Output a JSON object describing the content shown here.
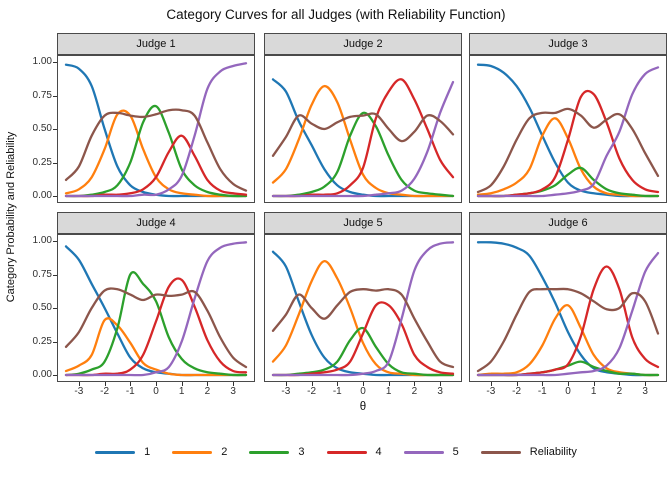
{
  "title": "Category Curves for all Judges (with Reliability Function)",
  "y_axis_label": "Category Probability and Reliability",
  "x_axis_label": "θ",
  "legend": {
    "items": [
      {
        "label": "1",
        "color": "#1f77b4"
      },
      {
        "label": "2",
        "color": "#ff7f0e"
      },
      {
        "label": "3",
        "color": "#2ca02c"
      },
      {
        "label": "4",
        "color": "#d62728"
      },
      {
        "label": "5",
        "color": "#9467bd"
      },
      {
        "label": "Reliability",
        "color": "#8c564b"
      }
    ]
  },
  "chart_data": {
    "type": "line",
    "title": "Category Curves for all Judges (with Reliability Function)",
    "xlabel": "θ",
    "ylabel": "Category Probability and Reliability",
    "x_range": [
      -3.85,
      3.85
    ],
    "y_range": [
      0,
      1
    ],
    "x_ticks": [
      -3,
      -2,
      -1,
      0,
      1,
      2,
      3
    ],
    "x_tick_labels": [
      "-3",
      "-2",
      "-1",
      "0",
      "1",
      "2",
      "3"
    ],
    "y_ticks": [
      1,
      0.75,
      0.5,
      0.25,
      0
    ],
    "y_tick_labels": [
      "1.00",
      "0.75",
      "0.50",
      "0.25",
      "0.00"
    ],
    "grid": false,
    "legend_position": "bottom",
    "x": [
      -3.5,
      -3,
      -2.5,
      -2,
      -1.5,
      -1,
      -0.5,
      0,
      0.5,
      1,
      1.5,
      2,
      2.5,
      3,
      3.5
    ],
    "series_names": [
      "1",
      "2",
      "3",
      "4",
      "5",
      "Reliability"
    ],
    "series_colors": [
      "#1f77b4",
      "#ff7f0e",
      "#2ca02c",
      "#d62728",
      "#9467bd",
      "#8c564b"
    ],
    "panels": [
      {
        "title": "Judge 1",
        "series": [
          [
            0.98,
            0.95,
            0.82,
            0.5,
            0.22,
            0.08,
            0.03,
            0.01,
            0.0,
            0.0,
            0.0,
            0.0,
            0.0,
            0.0,
            0.0
          ],
          [
            0.02,
            0.05,
            0.14,
            0.35,
            0.61,
            0.6,
            0.35,
            0.14,
            0.05,
            0.02,
            0.01,
            0.0,
            0.0,
            0.0,
            0.0
          ],
          [
            0.0,
            0.0,
            0.01,
            0.03,
            0.08,
            0.25,
            0.55,
            0.67,
            0.47,
            0.2,
            0.08,
            0.03,
            0.01,
            0.0,
            0.0
          ],
          [
            0.0,
            0.0,
            0.0,
            0.01,
            0.01,
            0.02,
            0.05,
            0.14,
            0.33,
            0.45,
            0.3,
            0.12,
            0.04,
            0.02,
            0.01
          ],
          [
            0.0,
            0.0,
            0.0,
            0.0,
            0.0,
            0.0,
            0.01,
            0.01,
            0.05,
            0.15,
            0.45,
            0.8,
            0.93,
            0.97,
            0.99
          ],
          [
            0.12,
            0.22,
            0.45,
            0.6,
            0.62,
            0.6,
            0.59,
            0.61,
            0.64,
            0.64,
            0.6,
            0.4,
            0.2,
            0.09,
            0.04
          ]
        ]
      },
      {
        "title": "Judge 2",
        "series": [
          [
            0.87,
            0.78,
            0.56,
            0.38,
            0.2,
            0.08,
            0.03,
            0.01,
            0.0,
            0.0,
            0.0,
            0.0,
            0.0,
            0.0,
            0.0
          ],
          [
            0.1,
            0.2,
            0.42,
            0.68,
            0.82,
            0.7,
            0.42,
            0.16,
            0.06,
            0.02,
            0.01,
            0.0,
            0.0,
            0.0,
            0.0
          ],
          [
            0.0,
            0.0,
            0.01,
            0.03,
            0.07,
            0.18,
            0.45,
            0.62,
            0.52,
            0.3,
            0.12,
            0.04,
            0.02,
            0.01,
            0.0
          ],
          [
            0.0,
            0.0,
            0.0,
            0.01,
            0.01,
            0.02,
            0.08,
            0.21,
            0.58,
            0.78,
            0.87,
            0.72,
            0.5,
            0.27,
            0.14
          ],
          [
            0.0,
            0.0,
            0.0,
            0.0,
            0.0,
            0.0,
            0.0,
            0.0,
            0.01,
            0.02,
            0.04,
            0.13,
            0.33,
            0.62,
            0.85
          ],
          [
            0.3,
            0.44,
            0.6,
            0.54,
            0.5,
            0.55,
            0.59,
            0.6,
            0.61,
            0.5,
            0.41,
            0.48,
            0.6,
            0.56,
            0.46
          ]
        ]
      },
      {
        "title": "Judge 3",
        "series": [
          [
            0.98,
            0.97,
            0.92,
            0.82,
            0.66,
            0.45,
            0.25,
            0.1,
            0.04,
            0.02,
            0.01,
            0.0,
            0.0,
            0.0,
            0.0
          ],
          [
            0.01,
            0.02,
            0.05,
            0.1,
            0.2,
            0.45,
            0.58,
            0.43,
            0.2,
            0.07,
            0.02,
            0.01,
            0.0,
            0.0,
            0.0
          ],
          [
            0.0,
            0.0,
            0.0,
            0.01,
            0.02,
            0.04,
            0.08,
            0.16,
            0.21,
            0.12,
            0.05,
            0.02,
            0.01,
            0.0,
            0.0
          ],
          [
            0.0,
            0.0,
            0.0,
            0.01,
            0.02,
            0.05,
            0.14,
            0.42,
            0.74,
            0.76,
            0.55,
            0.28,
            0.12,
            0.05,
            0.03
          ],
          [
            0.0,
            0.0,
            0.0,
            0.0,
            0.0,
            0.0,
            0.01,
            0.02,
            0.04,
            0.09,
            0.3,
            0.48,
            0.76,
            0.91,
            0.96
          ],
          [
            0.03,
            0.08,
            0.22,
            0.42,
            0.58,
            0.62,
            0.62,
            0.65,
            0.6,
            0.51,
            0.57,
            0.61,
            0.5,
            0.32,
            0.15
          ]
        ]
      },
      {
        "title": "Judge 4",
        "series": [
          [
            0.96,
            0.86,
            0.68,
            0.5,
            0.31,
            0.13,
            0.05,
            0.02,
            0.01,
            0.0,
            0.0,
            0.0,
            0.0,
            0.0,
            0.0
          ],
          [
            0.03,
            0.07,
            0.15,
            0.41,
            0.37,
            0.24,
            0.09,
            0.04,
            0.01,
            0.0,
            0.0,
            0.0,
            0.0,
            0.0,
            0.0
          ],
          [
            0.0,
            0.01,
            0.04,
            0.1,
            0.35,
            0.75,
            0.68,
            0.55,
            0.28,
            0.12,
            0.05,
            0.02,
            0.01,
            0.0,
            0.0
          ],
          [
            0.0,
            0.0,
            0.0,
            0.01,
            0.01,
            0.04,
            0.15,
            0.4,
            0.66,
            0.71,
            0.51,
            0.26,
            0.1,
            0.03,
            0.02
          ],
          [
            0.0,
            0.0,
            0.0,
            0.0,
            0.0,
            0.0,
            0.0,
            0.02,
            0.06,
            0.25,
            0.57,
            0.85,
            0.95,
            0.98,
            0.99
          ],
          [
            0.21,
            0.32,
            0.5,
            0.63,
            0.64,
            0.6,
            0.56,
            0.6,
            0.59,
            0.6,
            0.62,
            0.48,
            0.28,
            0.13,
            0.06
          ]
        ]
      },
      {
        "title": "Judge 5",
        "series": [
          [
            0.92,
            0.81,
            0.55,
            0.3,
            0.13,
            0.05,
            0.02,
            0.01,
            0.0,
            0.0,
            0.0,
            0.0,
            0.0,
            0.0,
            0.0
          ],
          [
            0.1,
            0.22,
            0.45,
            0.7,
            0.85,
            0.72,
            0.5,
            0.24,
            0.08,
            0.02,
            0.01,
            0.0,
            0.0,
            0.0,
            0.0
          ],
          [
            0.0,
            0.0,
            0.01,
            0.02,
            0.04,
            0.1,
            0.26,
            0.35,
            0.21,
            0.08,
            0.02,
            0.01,
            0.0,
            0.0,
            0.0
          ],
          [
            0.0,
            0.0,
            0.0,
            0.01,
            0.02,
            0.04,
            0.1,
            0.31,
            0.52,
            0.52,
            0.38,
            0.15,
            0.06,
            0.02,
            0.01
          ],
          [
            0.0,
            0.0,
            0.0,
            0.0,
            0.0,
            0.0,
            0.0,
            0.01,
            0.03,
            0.1,
            0.42,
            0.78,
            0.93,
            0.98,
            0.99
          ],
          [
            0.33,
            0.45,
            0.6,
            0.5,
            0.42,
            0.52,
            0.62,
            0.64,
            0.63,
            0.64,
            0.6,
            0.42,
            0.25,
            0.1,
            0.06
          ]
        ]
      },
      {
        "title": "Judge 6",
        "series": [
          [
            0.99,
            0.99,
            0.98,
            0.95,
            0.89,
            0.73,
            0.54,
            0.32,
            0.15,
            0.05,
            0.02,
            0.01,
            0.0,
            0.0,
            0.0
          ],
          [
            0.0,
            0.01,
            0.01,
            0.02,
            0.08,
            0.22,
            0.42,
            0.52,
            0.35,
            0.15,
            0.05,
            0.02,
            0.01,
            0.0,
            0.0
          ],
          [
            0.0,
            0.0,
            0.0,
            0.0,
            0.01,
            0.02,
            0.04,
            0.07,
            0.1,
            0.06,
            0.03,
            0.01,
            0.01,
            0.0,
            0.0
          ],
          [
            0.0,
            0.0,
            0.0,
            0.0,
            0.01,
            0.02,
            0.04,
            0.08,
            0.29,
            0.64,
            0.81,
            0.64,
            0.28,
            0.12,
            0.06
          ],
          [
            0.0,
            0.0,
            0.0,
            0.0,
            0.0,
            0.0,
            0.0,
            0.01,
            0.02,
            0.03,
            0.07,
            0.2,
            0.48,
            0.77,
            0.91
          ],
          [
            0.03,
            0.1,
            0.25,
            0.45,
            0.62,
            0.64,
            0.64,
            0.64,
            0.61,
            0.55,
            0.49,
            0.5,
            0.61,
            0.55,
            0.31
          ]
        ]
      }
    ]
  }
}
